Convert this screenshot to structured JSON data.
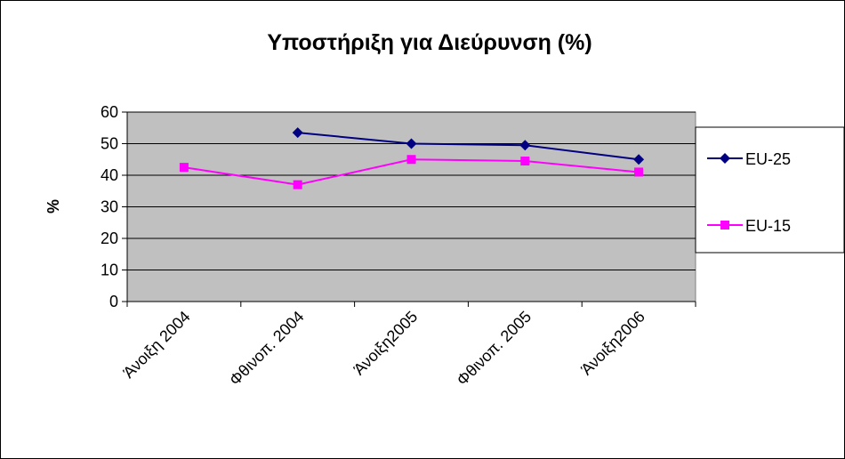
{
  "chart_data": {
    "type": "line",
    "title": "Υποστήριξη για Διεύρυνση (%)",
    "y_label": "%",
    "categories": [
      "Άνοιξη 2004",
      "Φθινοπ. 2004",
      "Άνοιξη2005",
      "Φθινοπ. 2005",
      "Άνοιξη2006"
    ],
    "series": [
      {
        "name": "EU-25",
        "color": "#000080",
        "marker": "diamond",
        "values": [
          null,
          53.5,
          50,
          49.5,
          45
        ]
      },
      {
        "name": "EU-15",
        "color": "#ff00ff",
        "marker": "square",
        "values": [
          42.5,
          37,
          45,
          44.5,
          41
        ]
      }
    ],
    "ylim": [
      0,
      60
    ],
    "yticks": [
      0,
      10,
      20,
      30,
      40,
      50,
      60
    ],
    "grid": true,
    "legend": "right"
  }
}
